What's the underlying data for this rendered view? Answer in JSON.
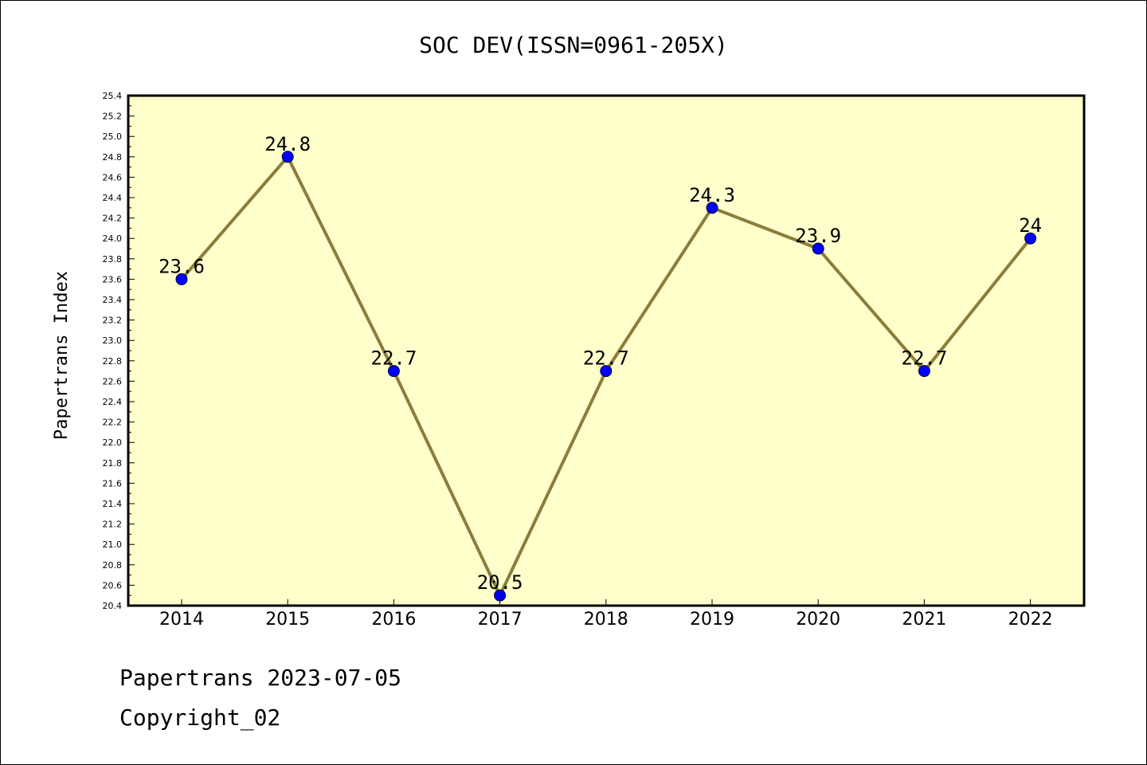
{
  "chart_data": {
    "type": "line",
    "title": "SOC DEV(ISSN=0961-205X)",
    "xlabel": "",
    "ylabel": "Papertrans Index",
    "categories": [
      "2014",
      "2015",
      "2016",
      "2017",
      "2018",
      "2019",
      "2020",
      "2021",
      "2022"
    ],
    "values": [
      23.6,
      24.8,
      22.7,
      20.5,
      22.7,
      24.3,
      23.9,
      22.7,
      24.0
    ],
    "data_labels": [
      "23.6",
      "24.8",
      "22.7",
      "20.5",
      "22.7",
      "24.3",
      "23.9",
      "22.7",
      "24"
    ],
    "ylim": [
      20.4,
      25.4
    ],
    "yticks": [
      "20.4",
      "20.6",
      "20.8",
      "21.0",
      "21.2",
      "21.4",
      "21.6",
      "21.8",
      "22.0",
      "22.2",
      "22.4",
      "22.6",
      "22.8",
      "23.0",
      "23.2",
      "23.4",
      "23.6",
      "23.8",
      "24.0",
      "24.2",
      "24.4",
      "24.6",
      "24.8",
      "25.0",
      "25.2",
      "25.4"
    ],
    "grid": false,
    "legend": "none",
    "colors": {
      "plot_background": "#ffffcc",
      "line": "#8b7d3a",
      "marker": "#0000ff"
    }
  },
  "footer": {
    "line1": "Papertrans 2023-07-05",
    "line2": "Copyright_02"
  }
}
